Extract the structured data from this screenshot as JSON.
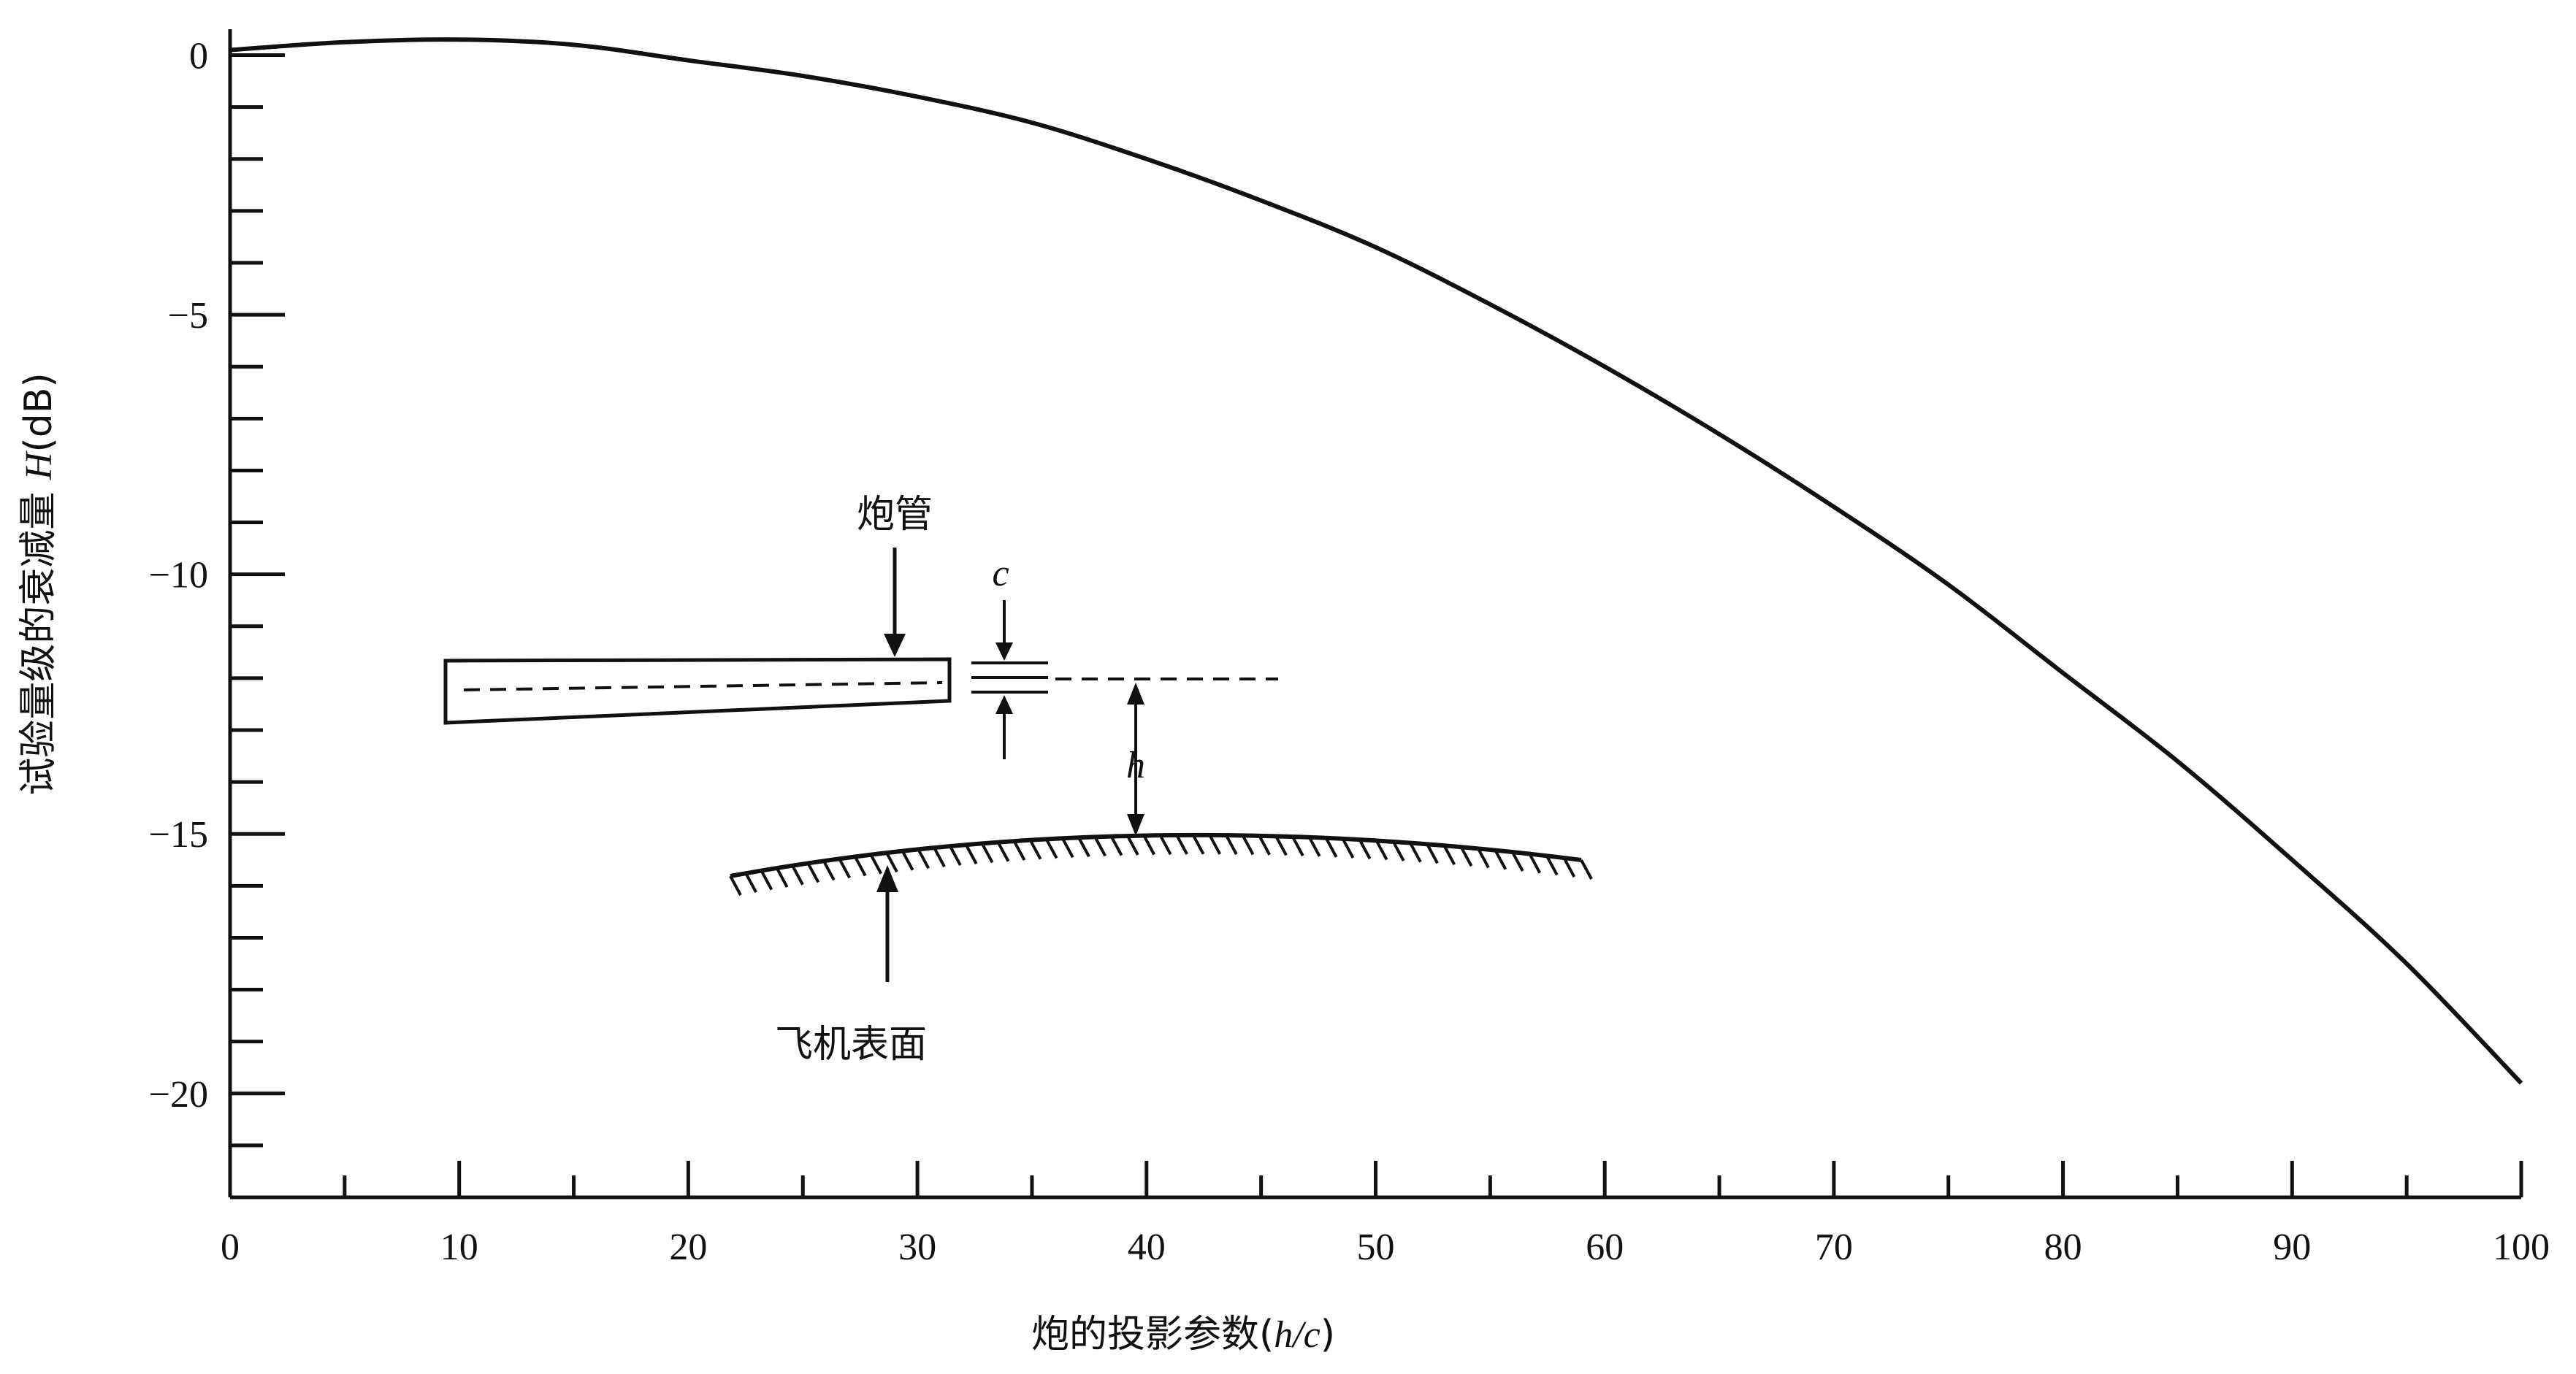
{
  "chart_data": {
    "type": "line",
    "xlabel_prefix": "炮的投影参数(",
    "xlabel_var": "h/c",
    "xlabel_suffix": ")",
    "ylabel_prefix": "试验量级的衰减量 ",
    "ylabel_var": "H",
    "ylabel_suffix": "(dB)",
    "xlim": [
      0,
      100
    ],
    "ylim": [
      -22,
      0.5
    ],
    "x_ticks": [
      0,
      10,
      20,
      30,
      40,
      50,
      60,
      70,
      80,
      90,
      100
    ],
    "x_tick_labels": [
      "0",
      "10",
      "20",
      "30",
      "40",
      "50",
      "60",
      "70",
      "80",
      "90",
      "100"
    ],
    "y_ticks": [
      0,
      -5,
      -10,
      -15,
      -20
    ],
    "y_tick_labels": [
      "0",
      "−5",
      "−10",
      "−15",
      "−20"
    ],
    "grid": false,
    "series": [
      {
        "x": [
          0,
          5,
          10,
          15,
          20,
          25,
          30,
          35,
          40,
          45,
          50,
          55,
          60,
          65,
          70,
          75,
          80,
          85,
          90,
          95,
          100
        ],
        "y": [
          0.1,
          0.25,
          0.3,
          0.2,
          -0.1,
          -0.4,
          -0.8,
          -1.3,
          -2.0,
          -2.8,
          -3.7,
          -4.8,
          -6.0,
          -7.3,
          -8.7,
          -10.2,
          -11.9,
          -13.6,
          -15.5,
          -17.5,
          -19.8
        ]
      }
    ]
  },
  "inset": {
    "gun_barrel_label": "炮管",
    "caliber_label": "c",
    "height_label": "h",
    "aircraft_surface_label": "飞机表面"
  }
}
